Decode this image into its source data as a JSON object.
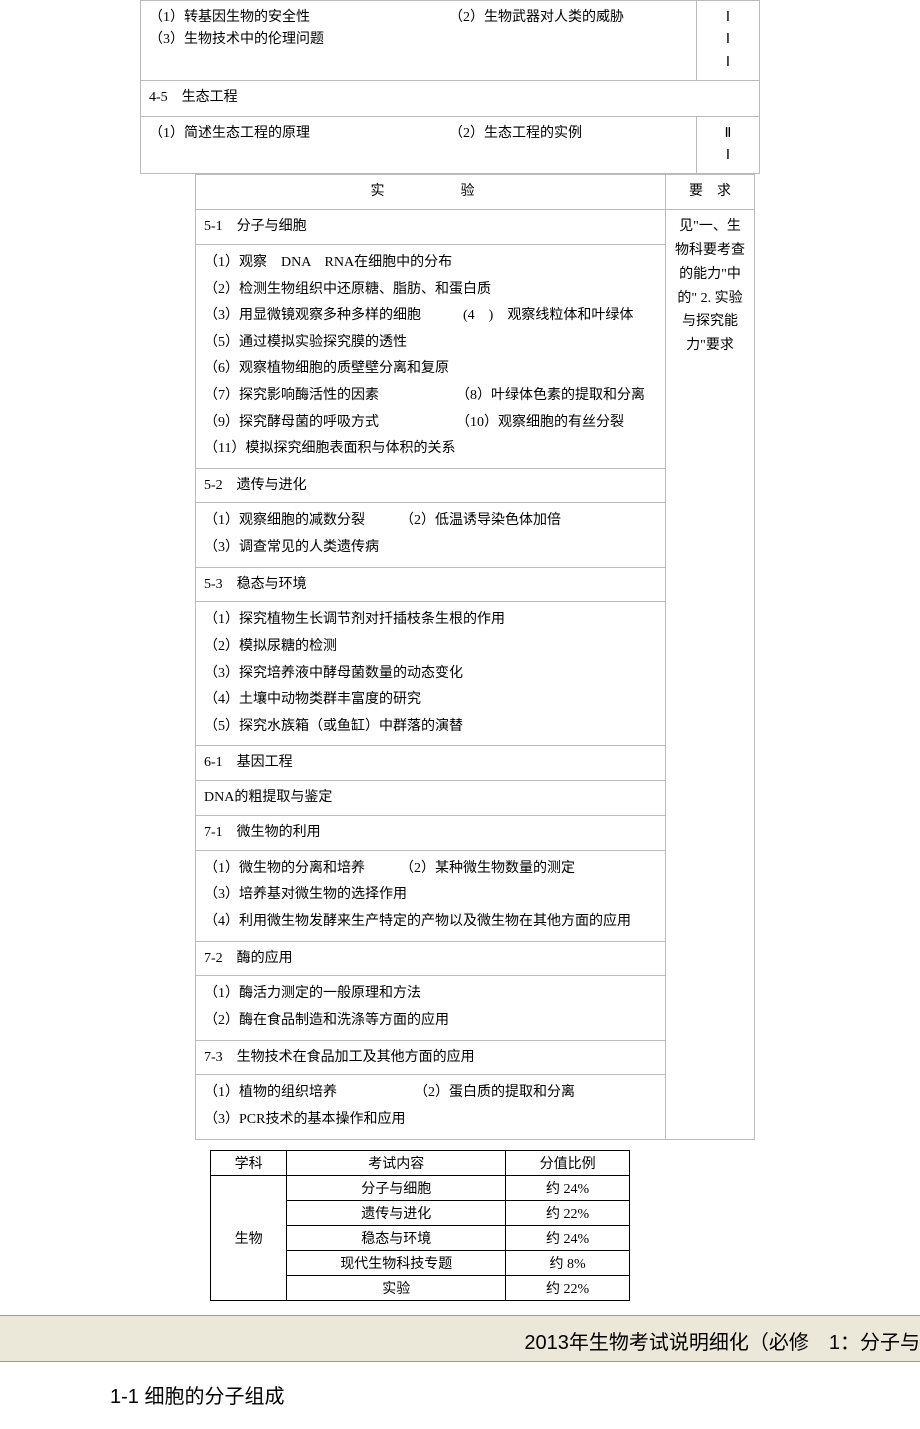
{
  "top_table": {
    "row1": {
      "items": [
        "（1）转基因生物的安全性",
        "（2）生物武器对人类的威胁",
        "（3）生物技术中的伦理问题"
      ],
      "reqs": [
        "Ⅰ",
        "Ⅰ",
        "Ⅰ"
      ]
    },
    "section45": "4-5　生态工程",
    "row2": {
      "items": [
        "（1）简述生态工程的原理",
        "（2）生态工程的实例"
      ],
      "reqs": [
        "Ⅱ",
        "Ⅰ"
      ]
    }
  },
  "exp": {
    "header_label": "实　　验",
    "req_header": "要　求",
    "sections": [
      {
        "title": "5-1　分子与细胞",
        "lines": [
          "（1）观察　DNA　RNA在细胞中的分布",
          "（2）检测生物组织中还原糖、脂肪、和蛋白质",
          "（3）用显微镜观察多种多样的细胞　　　(4　)　观察线粒体和叶绿体",
          "（5）通过模拟实验探究膜的透性",
          "（6）观察植物细胞的质壁壁分离和复原",
          "（7）探究影响酶活性的因素　　　　　　（8）叶绿体色素的提取和分离",
          "（9）探究酵母菌的呼吸方式　　　　　　（10）观察细胞的有丝分裂",
          "（11）模拟探究细胞表面积与体积的关系"
        ]
      },
      {
        "title": "5-2　遗传与进化",
        "lines": [
          "（1）观察细胞的减数分裂　　　（2）低温诱导染色体加倍",
          "（3）调查常见的人类遗传病"
        ]
      },
      {
        "title": "5-3　稳态与环境",
        "lines": [
          "（1）探究植物生长调节剂对扦插枝条生根的作用",
          "（2）模拟尿糖的检测",
          "（3）探究培养液中酵母菌数量的动态变化",
          "（4）土壤中动物类群丰富度的研究",
          "（5）探究水族箱（或鱼缸）中群落的演替"
        ]
      },
      {
        "title": "6-1　基因工程",
        "lines": [
          "DNA的粗提取与鉴定"
        ]
      },
      {
        "title": "7-1　微生物的利用",
        "lines": [
          "（1）微生物的分离和培养　　　（2）某种微生物数量的测定",
          "（3）培养基对微生物的选择作用",
          "（4）利用微生物发酵来生产特定的产物以及微生物在其他方面的应用"
        ]
      },
      {
        "title": "7-2　酶的应用",
        "lines": [
          "（1）酶活力测定的一般原理和方法",
          "（2）酶在食品制造和洗涤等方面的应用"
        ]
      },
      {
        "title": "7-3　生物技术在食品加工及其他方面的应用",
        "lines": [
          "（1）植物的组织培养　　　　　　（2）蛋白质的提取和分离",
          "（3）PCR技术的基本操作和应用"
        ]
      }
    ],
    "req_note": "见\"一、生物科要考查的能力\"中的\" 2. 实验与探究能力\"要求"
  },
  "pct_table": {
    "headers": [
      "学科",
      "考试内容",
      "分值比例"
    ],
    "subject": "生物",
    "rows": [
      {
        "content": "分子与细胞",
        "pct": "约 24%"
      },
      {
        "content": "遗传与进化",
        "pct": "约 22%"
      },
      {
        "content": "稳态与环境",
        "pct": "约 24%"
      },
      {
        "content": "现代生物科技专题",
        "pct": "约 8%"
      },
      {
        "content": "实验",
        "pct": "约 22%"
      }
    ]
  },
  "banner": "2013年生物考试说明细化（必修　1：分子与",
  "section_title": "1-1 细胞的分子组成"
}
